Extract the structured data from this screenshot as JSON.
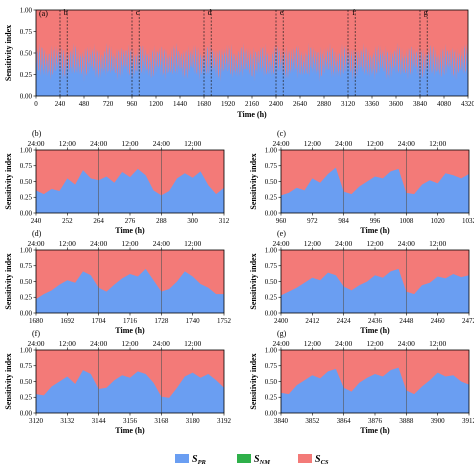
{
  "figure": {
    "legend": [
      {
        "symbol": "S",
        "sub": "PR",
        "color": "#6a9ef2"
      },
      {
        "symbol": "S",
        "sub": "NM",
        "color": "#2fb04a"
      },
      {
        "symbol": "S",
        "sub": "CS",
        "color": "#f37a78"
      }
    ],
    "legend_position": "bottom-center"
  },
  "chart_data": [
    {
      "id": "a",
      "panel_label": "(a)",
      "type": "area",
      "stacked": true,
      "xlabel": "Time (h)",
      "ylabel": "Sensitivity index",
      "xlim": [
        0,
        4320
      ],
      "ylim": [
        0,
        1
      ],
      "x_ticks": [
        0,
        240,
        480,
        720,
        960,
        1200,
        1440,
        1680,
        1920,
        2160,
        2400,
        2640,
        2880,
        3120,
        3360,
        3600,
        3840,
        4080,
        4320
      ],
      "y_ticks": [
        "0.00",
        "0.25",
        "0.50",
        "0.75",
        "1.00"
      ],
      "highlight_windows": [
        {
          "label": "b",
          "x": [
            240,
            312
          ]
        },
        {
          "label": "c",
          "x": [
            960,
            1032
          ]
        },
        {
          "label": "d",
          "x": [
            1680,
            1752
          ]
        },
        {
          "label": "e",
          "x": [
            2400,
            2472
          ]
        },
        {
          "label": "f",
          "x": [
            3120,
            3192
          ]
        },
        {
          "label": "g",
          "x": [
            3840,
            3912
          ]
        }
      ],
      "series": [
        {
          "name": "S_PR",
          "color": "#6a9ef2",
          "note": "daily oscillation, mostly 0.20-0.55"
        },
        {
          "name": "S_NM",
          "color": "#2fb04a",
          "values_approx": 0.0
        },
        {
          "name": "S_CS",
          "color": "#f37a78",
          "note": "remainder to 1.00"
        }
      ]
    },
    {
      "id": "b",
      "panel_label": "(b)",
      "type": "area",
      "stacked": true,
      "xlabel": "Time (h)",
      "ylabel": "Sensitivity index",
      "xlim": [
        240,
        312
      ],
      "ylim": [
        0,
        1
      ],
      "x_ticks": [
        240,
        252,
        264,
        276,
        288,
        300,
        312
      ],
      "y_ticks": [
        "0.00",
        "0.25",
        "0.50",
        "0.75",
        "1.00"
      ],
      "top_ticks": [
        "24:00",
        "12:00",
        "24:00",
        "12:00",
        "24:00",
        "12:00"
      ],
      "day_boundaries": [
        264,
        288
      ],
      "x": [
        240,
        243,
        246,
        249,
        252,
        255,
        258,
        261,
        264,
        267,
        270,
        273,
        276,
        279,
        282,
        285,
        288,
        291,
        294,
        297,
        300,
        303,
        306,
        309,
        312
      ],
      "series": [
        {
          "name": "S_PR",
          "values": [
            0.36,
            0.3,
            0.38,
            0.35,
            0.55,
            0.45,
            0.68,
            0.55,
            0.52,
            0.58,
            0.48,
            0.65,
            0.57,
            0.7,
            0.6,
            0.36,
            0.28,
            0.35,
            0.55,
            0.63,
            0.56,
            0.66,
            0.44,
            0.3,
            0.4
          ]
        },
        {
          "name": "S_NM",
          "values": [
            0,
            0,
            0,
            0,
            0,
            0,
            0,
            0,
            0,
            0,
            0,
            0,
            0,
            0,
            0,
            0,
            0,
            0,
            0,
            0,
            0,
            0,
            0,
            0,
            0
          ]
        }
      ]
    },
    {
      "id": "c",
      "panel_label": "(c)",
      "type": "area",
      "stacked": true,
      "xlabel": "Time (h)",
      "ylabel": "Sensitivity index",
      "xlim": [
        960,
        1032
      ],
      "ylim": [
        0,
        1
      ],
      "x_ticks": [
        960,
        972,
        984,
        996,
        1008,
        1020,
        1032
      ],
      "y_ticks": [
        "0.00",
        "0.25",
        "0.50",
        "0.75",
        "1.00"
      ],
      "top_ticks": [
        "24:00",
        "12:00",
        "24:00",
        "12:00",
        "24:00",
        "12:00"
      ],
      "day_boundaries": [
        984,
        1008
      ],
      "x": [
        960,
        963,
        966,
        969,
        972,
        975,
        978,
        981,
        984,
        987,
        990,
        993,
        996,
        999,
        1002,
        1005,
        1008,
        1011,
        1014,
        1017,
        1020,
        1023,
        1026,
        1029,
        1032
      ],
      "series": [
        {
          "name": "S_PR",
          "values": [
            0.28,
            0.32,
            0.4,
            0.36,
            0.55,
            0.48,
            0.62,
            0.72,
            0.34,
            0.3,
            0.42,
            0.5,
            0.58,
            0.55,
            0.66,
            0.7,
            0.32,
            0.3,
            0.45,
            0.52,
            0.47,
            0.63,
            0.6,
            0.55,
            0.62
          ]
        },
        {
          "name": "S_NM",
          "values": [
            0,
            0,
            0,
            0,
            0,
            0,
            0,
            0,
            0,
            0,
            0,
            0,
            0,
            0,
            0,
            0,
            0,
            0,
            0,
            0,
            0,
            0,
            0,
            0,
            0
          ]
        }
      ]
    },
    {
      "id": "d",
      "panel_label": "(d)",
      "type": "area",
      "stacked": true,
      "xlabel": "Time (h)",
      "ylabel": "Sensitivity index",
      "xlim": [
        1680,
        1752
      ],
      "ylim": [
        0,
        1
      ],
      "x_ticks": [
        1680,
        1692,
        1704,
        1716,
        1728,
        1740,
        1752
      ],
      "y_ticks": [
        "0.00",
        "0.25",
        "0.50",
        "0.75",
        "1.00"
      ],
      "top_ticks": [
        "24:00",
        "12:00",
        "24:00",
        "12:00",
        "24:00",
        "12:00"
      ],
      "day_boundaries": [
        1704,
        1728
      ],
      "x": [
        1680,
        1683,
        1686,
        1689,
        1692,
        1695,
        1698,
        1701,
        1704,
        1707,
        1710,
        1713,
        1716,
        1719,
        1722,
        1725,
        1728,
        1731,
        1734,
        1737,
        1740,
        1743,
        1746,
        1749,
        1752
      ],
      "series": [
        {
          "name": "S_PR",
          "values": [
            0.22,
            0.3,
            0.36,
            0.45,
            0.52,
            0.48,
            0.66,
            0.6,
            0.4,
            0.34,
            0.45,
            0.55,
            0.62,
            0.58,
            0.7,
            0.52,
            0.34,
            0.38,
            0.5,
            0.66,
            0.58,
            0.46,
            0.4,
            0.3,
            0.3
          ]
        },
        {
          "name": "S_NM",
          "values": [
            0,
            0,
            0,
            0,
            0,
            0,
            0,
            0,
            0,
            0,
            0,
            0,
            0,
            0,
            0,
            0,
            0,
            0,
            0,
            0,
            0,
            0,
            0,
            0,
            0
          ]
        }
      ]
    },
    {
      "id": "e",
      "panel_label": "(e)",
      "type": "area",
      "stacked": true,
      "xlabel": "Time (h)",
      "ylabel": "Sensitivity index",
      "xlim": [
        2400,
        2472
      ],
      "ylim": [
        0,
        1
      ],
      "x_ticks": [
        2400,
        2412,
        2424,
        2436,
        2448,
        2460,
        2472
      ],
      "y_ticks": [
        "0.00",
        "0.25",
        "0.50",
        "0.75",
        "1.00"
      ],
      "top_ticks": [
        "24:00",
        "12:00",
        "24:00",
        "12:00",
        "24:00",
        "12:00"
      ],
      "day_boundaries": [
        2424,
        2448
      ],
      "x": [
        2400,
        2403,
        2406,
        2409,
        2412,
        2415,
        2418,
        2421,
        2424,
        2427,
        2430,
        2433,
        2436,
        2439,
        2442,
        2445,
        2448,
        2451,
        2454,
        2457,
        2460,
        2463,
        2466,
        2469,
        2472
      ],
      "series": [
        {
          "name": "S_PR",
          "values": [
            0.28,
            0.34,
            0.4,
            0.48,
            0.56,
            0.52,
            0.64,
            0.6,
            0.42,
            0.36,
            0.44,
            0.5,
            0.6,
            0.56,
            0.66,
            0.7,
            0.34,
            0.3,
            0.44,
            0.48,
            0.58,
            0.55,
            0.62,
            0.57,
            0.6
          ]
        },
        {
          "name": "S_NM",
          "values": [
            0,
            0,
            0,
            0,
            0,
            0,
            0,
            0,
            0,
            0,
            0,
            0,
            0,
            0,
            0,
            0,
            0,
            0,
            0,
            0,
            0,
            0,
            0,
            0,
            0
          ]
        }
      ]
    },
    {
      "id": "f",
      "panel_label": "(f)",
      "type": "area",
      "stacked": true,
      "xlabel": "Time (h)",
      "ylabel": "Sensitivity index",
      "xlim": [
        3120,
        3192
      ],
      "ylim": [
        0,
        1
      ],
      "x_ticks": [
        3120,
        3132,
        3144,
        3156,
        3168,
        3180,
        3192
      ],
      "y_ticks": [
        "0.00",
        "0.25",
        "0.50",
        "0.75",
        "1.00"
      ],
      "top_ticks": [
        "24:00",
        "12:00",
        "24:00",
        "12:00",
        "24:00",
        "12:00"
      ],
      "day_boundaries": [
        3144,
        3168
      ],
      "x": [
        3120,
        3123,
        3126,
        3129,
        3132,
        3135,
        3138,
        3141,
        3144,
        3147,
        3150,
        3153,
        3156,
        3159,
        3162,
        3165,
        3168,
        3171,
        3174,
        3177,
        3180,
        3183,
        3186,
        3189,
        3192
      ],
      "series": [
        {
          "name": "S_PR",
          "values": [
            0.3,
            0.28,
            0.42,
            0.5,
            0.58,
            0.46,
            0.68,
            0.62,
            0.38,
            0.4,
            0.52,
            0.6,
            0.56,
            0.66,
            0.62,
            0.48,
            0.26,
            0.24,
            0.4,
            0.58,
            0.64,
            0.56,
            0.62,
            0.52,
            0.4
          ]
        },
        {
          "name": "S_NM",
          "values": [
            0,
            0,
            0,
            0,
            0,
            0,
            0,
            0,
            0,
            0,
            0,
            0,
            0,
            0,
            0,
            0,
            0,
            0,
            0,
            0,
            0,
            0,
            0,
            0,
            0
          ]
        }
      ]
    },
    {
      "id": "g",
      "panel_label": "(g)",
      "type": "area",
      "stacked": true,
      "xlabel": "Time (h)",
      "ylabel": "Sensitivity index",
      "xlim": [
        3840,
        3912
      ],
      "ylim": [
        0,
        1
      ],
      "x_ticks": [
        3840,
        3852,
        3864,
        3876,
        3888,
        3900,
        3912
      ],
      "y_ticks": [
        "0.00",
        "0.25",
        "0.50",
        "0.75",
        "1.00"
      ],
      "top_ticks": [
        "24:00",
        "12:00",
        "24:00",
        "12:00",
        "24:00",
        "12:00"
      ],
      "day_boundaries": [
        3864,
        3888
      ],
      "x": [
        3840,
        3843,
        3846,
        3849,
        3852,
        3855,
        3858,
        3861,
        3864,
        3867,
        3870,
        3873,
        3876,
        3879,
        3882,
        3885,
        3888,
        3891,
        3894,
        3897,
        3900,
        3903,
        3906,
        3909,
        3912
      ],
      "series": [
        {
          "name": "S_PR",
          "values": [
            0.32,
            0.3,
            0.44,
            0.52,
            0.6,
            0.55,
            0.66,
            0.7,
            0.4,
            0.34,
            0.48,
            0.56,
            0.62,
            0.58,
            0.68,
            0.72,
            0.36,
            0.3,
            0.42,
            0.52,
            0.64,
            0.58,
            0.6,
            0.5,
            0.45
          ]
        },
        {
          "name": "S_NM",
          "values": [
            0,
            0,
            0,
            0,
            0,
            0,
            0,
            0,
            0,
            0,
            0,
            0,
            0,
            0,
            0,
            0,
            0,
            0,
            0,
            0,
            0,
            0,
            0,
            0,
            0
          ]
        }
      ]
    }
  ]
}
